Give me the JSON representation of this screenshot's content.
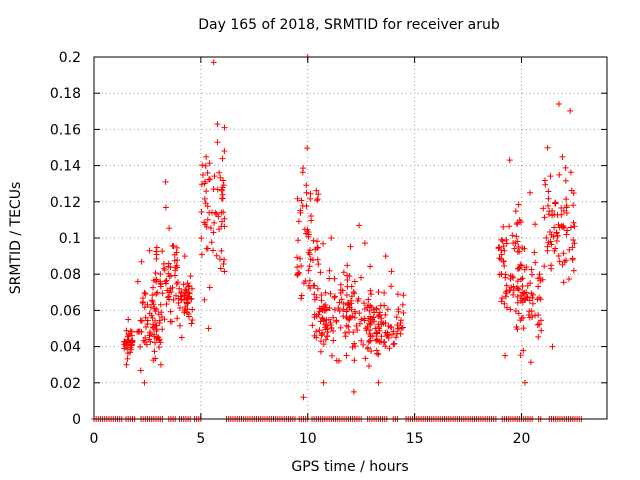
{
  "chart_data": {
    "type": "scatter",
    "title": "Day 165 of 2018, SRMTID for receiver arub",
    "xlabel": "GPS time / hours",
    "ylabel": "SRMTID / TECUs",
    "xlim": [
      0,
      24
    ],
    "ylim": [
      0,
      0.2
    ],
    "xticks": [
      0,
      5,
      10,
      15,
      20
    ],
    "yticks": [
      0,
      0.02,
      0.04,
      0.06,
      0.08,
      0.1,
      0.12,
      0.14,
      0.16,
      0.18,
      0.2
    ],
    "ytick_labels": [
      "0",
      "0.02",
      "0.04",
      "0.06",
      "0.08",
      "0.1",
      "0.12",
      "0.14",
      "0.16",
      "0.18",
      "0.2"
    ],
    "grid": true,
    "marker": "+",
    "color": "#ff0000",
    "clusters": [
      {
        "x": [
          1.4,
          1.8
        ],
        "y": [
          0.03,
          0.055
        ]
      },
      {
        "x": [
          2.0,
          3.2
        ],
        "y": [
          0.02,
          0.093
        ]
      },
      {
        "x": [
          2.8,
          3.9
        ],
        "y": [
          0.03,
          0.131
        ]
      },
      {
        "x": [
          3.9,
          4.6
        ],
        "y": [
          0.045,
          0.09
        ]
      },
      {
        "x": [
          5.0,
          6.2
        ],
        "y": [
          0.05,
          0.197
        ]
      },
      {
        "x": [
          9.5,
          10.5
        ],
        "y": [
          0.012,
          0.2
        ]
      },
      {
        "x": [
          10.2,
          12.0
        ],
        "y": [
          0.02,
          0.1
        ]
      },
      {
        "x": [
          11.8,
          13.0
        ],
        "y": [
          0.015,
          0.107
        ]
      },
      {
        "x": [
          12.8,
          14.5
        ],
        "y": [
          0.02,
          0.09
        ]
      },
      {
        "x": [
          18.9,
          20.0
        ],
        "y": [
          0.035,
          0.143
        ]
      },
      {
        "x": [
          19.8,
          21.0
        ],
        "y": [
          0.02,
          0.125
        ]
      },
      {
        "x": [
          21.0,
          22.5
        ],
        "y": [
          0.04,
          0.174
        ]
      }
    ],
    "zero_segments": [
      [
        0.0,
        1.3
      ],
      [
        1.5,
        2.0
      ],
      [
        2.2,
        3.3
      ],
      [
        3.5,
        3.9
      ],
      [
        4.0,
        4.5
      ],
      [
        4.7,
        5.0
      ],
      [
        6.2,
        9.4
      ],
      [
        9.6,
        10.0
      ],
      [
        10.2,
        12.5
      ],
      [
        12.8,
        13.7
      ],
      [
        14.0,
        14.2
      ],
      [
        14.6,
        18.9
      ],
      [
        19.1,
        20.6
      ],
      [
        20.8,
        21.0
      ],
      [
        21.3,
        22.9
      ]
    ]
  }
}
